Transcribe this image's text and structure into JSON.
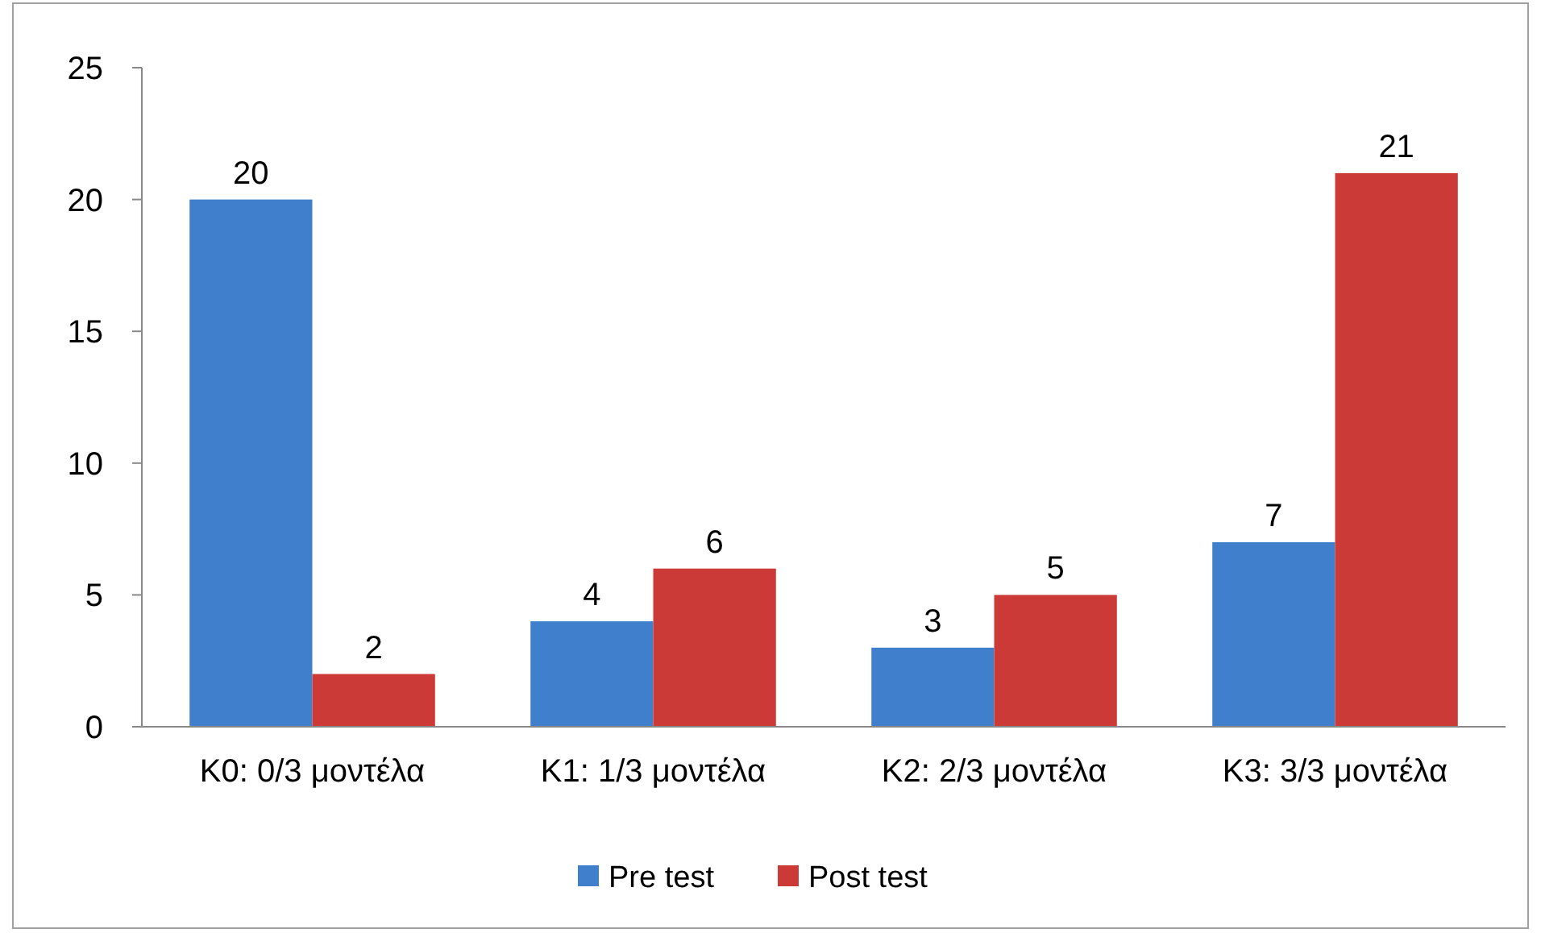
{
  "chart_data": {
    "type": "bar",
    "categories": [
      "Κ0: 0/3 μοντέλα",
      "Κ1: 1/3 μοντέλα",
      "Κ2: 2/3 μοντέλα",
      "Κ3: 3/3 μοντέλα"
    ],
    "series": [
      {
        "name": "Pre test",
        "color": "#3f7fcb",
        "values": [
          20,
          4,
          3,
          7
        ]
      },
      {
        "name": "Post test",
        "color": "#cc3a38",
        "values": [
          2,
          6,
          5,
          21
        ]
      }
    ],
    "ylim": [
      0,
      25
    ],
    "yticks": [
      0,
      5,
      10,
      15,
      20,
      25
    ],
    "grid": false,
    "data_labels": true,
    "legend": "bottom"
  }
}
